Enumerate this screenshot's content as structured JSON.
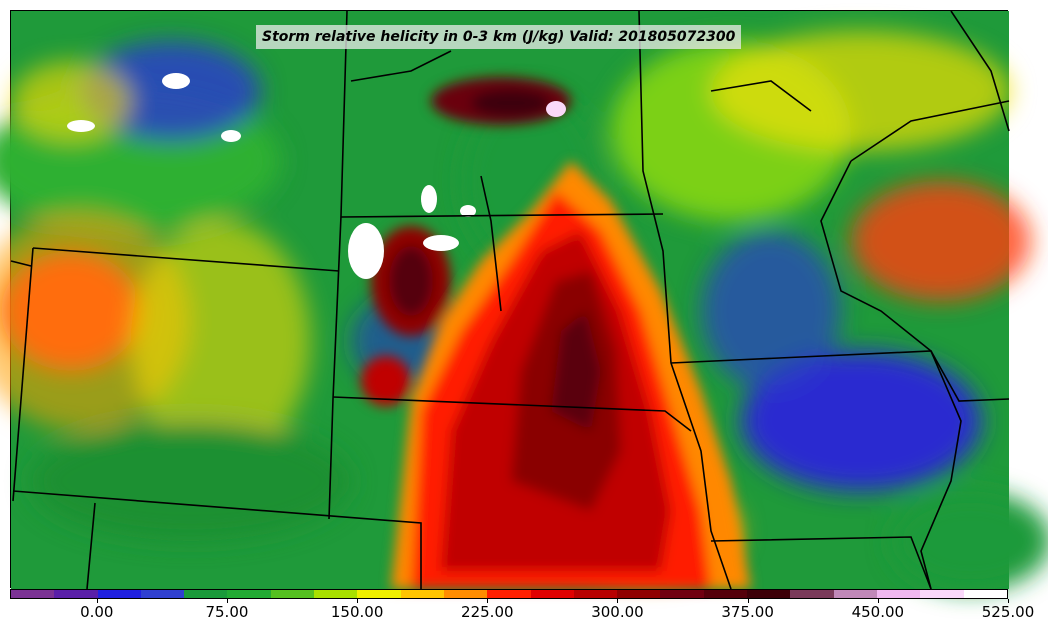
{
  "title": "Storm relative helicity in 0-3 km (J/kg) Valid: 201805072300",
  "colorbar": {
    "colors": [
      "#7b3294",
      "#5a1fa8",
      "#2020e0",
      "#3040d0",
      "#1a9a3a",
      "#22aa33",
      "#55c020",
      "#a8e000",
      "#f0f000",
      "#ffc400",
      "#ff8c00",
      "#ff2000",
      "#e00000",
      "#b80000",
      "#900000",
      "#700010",
      "#55000a",
      "#3c0008",
      "#7a3a5a",
      "#c088b8",
      "#f0b8f0",
      "#fad8fa",
      "#ffffff"
    ],
    "tick_labels": [
      "0.00",
      "75.00",
      "150.00",
      "225.00",
      "300.00",
      "375.00",
      "450.00",
      "525.00"
    ]
  }
}
